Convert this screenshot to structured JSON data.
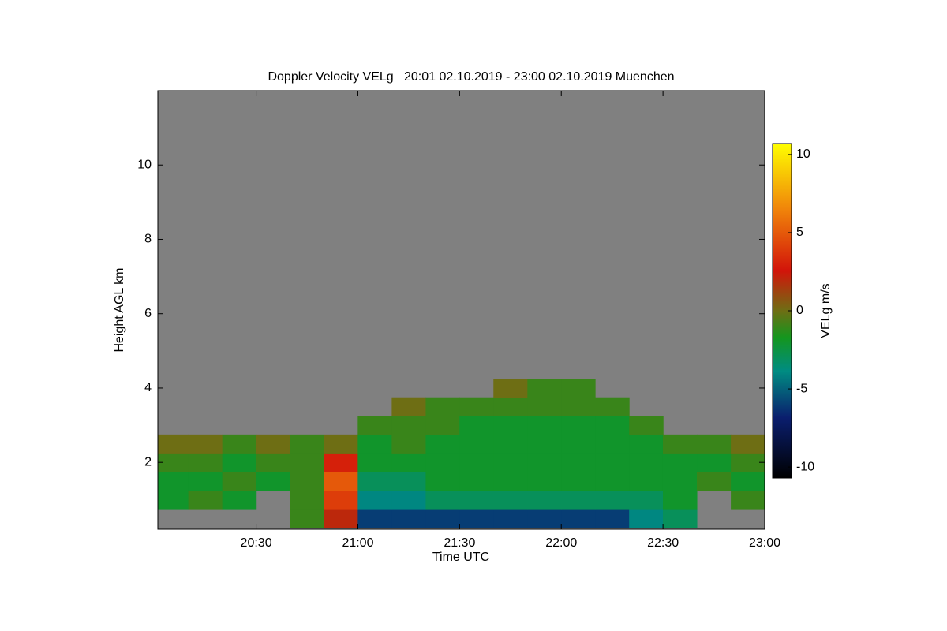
{
  "chart_data": {
    "type": "heatmap",
    "title": "Doppler Velocity VELg   20:01 02.10.2019 - 23:00 02.10.2019 Muenchen",
    "x_label": "Time UTC",
    "y_label": "Height AGL km",
    "colorbar_label": "VELg m/s",
    "x": [
      20.083,
      20.25,
      20.417,
      20.583,
      20.75,
      20.917,
      21.083,
      21.25,
      21.417,
      21.583,
      21.75,
      21.917,
      22.083,
      22.25,
      22.417,
      22.583,
      22.75,
      22.917
    ],
    "y": [
      0.5,
      1.0,
      1.5,
      2.0,
      2.5,
      3.0,
      3.5,
      4.0
    ],
    "values": [
      [
        null,
        null,
        null,
        null,
        -1,
        2,
        -6,
        -6,
        -6,
        -6,
        -6,
        -6,
        -6,
        -6,
        -4,
        -3,
        null,
        null
      ],
      [
        -2,
        -1,
        -2,
        null,
        -1,
        4,
        -4,
        -4,
        -3,
        -3,
        -3,
        -3,
        -3,
        -3,
        -3,
        -2,
        null,
        -1
      ],
      [
        -2,
        -2,
        -1,
        -2,
        -1,
        5,
        -3,
        -3,
        -2,
        -2,
        -2,
        -2,
        -2,
        -2,
        -2,
        -2,
        -1,
        -2
      ],
      [
        -1,
        -1,
        -2,
        -1,
        -1,
        3,
        -2,
        -2,
        -2,
        -2,
        -2,
        -2,
        -2,
        -2,
        -2,
        -2,
        -2,
        -1
      ],
      [
        0,
        0,
        -1,
        0,
        -1,
        0,
        -2,
        -1,
        -2,
        -2,
        -2,
        -2,
        -2,
        -2,
        -2,
        -1,
        -1,
        0
      ],
      [
        null,
        null,
        null,
        null,
        null,
        null,
        -1,
        -1,
        -1,
        -2,
        -2,
        -2,
        -2,
        -2,
        -1,
        null,
        null,
        null
      ],
      [
        null,
        null,
        null,
        null,
        null,
        null,
        null,
        0,
        -1,
        -1,
        -1,
        -1,
        -1,
        -1,
        null,
        null,
        null,
        null
      ],
      [
        null,
        null,
        null,
        null,
        null,
        null,
        null,
        null,
        null,
        null,
        0,
        -1,
        -1,
        null,
        null,
        null,
        null,
        null
      ]
    ],
    "xlim": [
      20.0167,
      23.0
    ],
    "xticks": [
      {
        "value": 20.5,
        "label": "20:30"
      },
      {
        "value": 21.0,
        "label": "21:00"
      },
      {
        "value": 21.5,
        "label": "21:30"
      },
      {
        "value": 22.0,
        "label": "22:00"
      },
      {
        "value": 22.5,
        "label": "22:30"
      },
      {
        "value": 23.0,
        "label": "23:00"
      }
    ],
    "ylim": [
      0.2,
      12.0
    ],
    "yticks": [
      2,
      4,
      6,
      8,
      10
    ],
    "zlim": [
      -10.7,
      10.7
    ],
    "zticks": [
      10,
      5,
      0,
      -5,
      -10
    ]
  }
}
